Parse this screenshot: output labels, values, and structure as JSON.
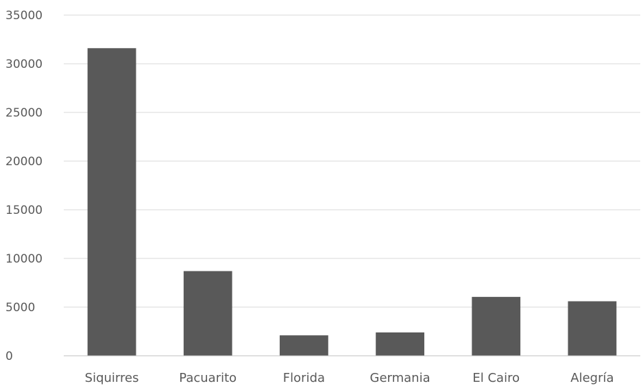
{
  "chart_data": {
    "type": "bar",
    "title": "",
    "xlabel": "",
    "ylabel": "",
    "categories": [
      "Siquirres",
      "Pacuarito",
      "Florida",
      "Germania",
      "El Cairo",
      "Alegría"
    ],
    "series": [
      {
        "values": [
          31600,
          8700,
          2100,
          2400,
          6050,
          5600
        ]
      }
    ],
    "ylim": [
      0,
      35000
    ],
    "yticks": [
      0,
      5000,
      10000,
      15000,
      20000,
      25000,
      30000,
      35000
    ],
    "ytick_labels": [
      "0",
      "5000",
      "10000",
      "15000",
      "20000",
      "25000",
      "30000",
      "35000"
    ],
    "bar_color": "#595959",
    "grid": true,
    "legend": "none"
  }
}
